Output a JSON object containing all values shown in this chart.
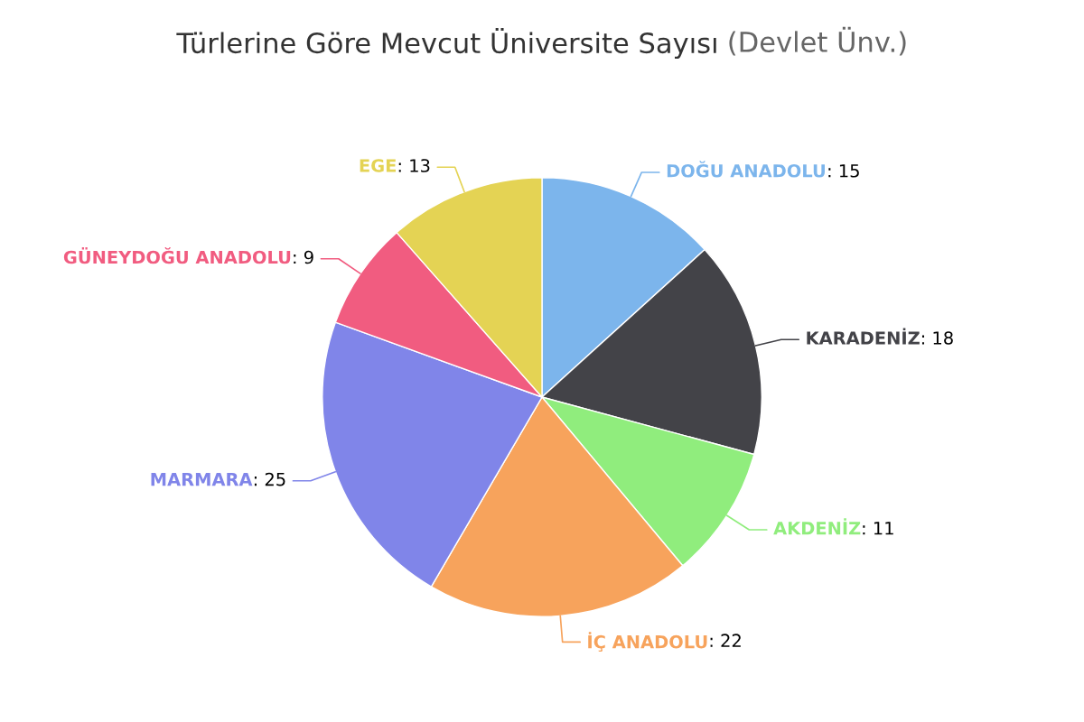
{
  "chart_data": {
    "type": "pie",
    "title": "Türlerine Göre Mevcut Üniversite Sayısı",
    "subtitle": "(Devlet Ünv.)",
    "categories": [
      "DOĞU ANADOLU",
      "KARADENİZ",
      "AKDENİZ",
      "İÇ ANADOLU",
      "MARMARA",
      "GÜNEYDOĞU ANADOLU",
      "EGE"
    ],
    "values": [
      15,
      18,
      11,
      22,
      25,
      9,
      13
    ],
    "colors": [
      "#7cb5ec",
      "#434348",
      "#90ed7d",
      "#f7a35c",
      "#8085e9",
      "#f15c80",
      "#e4d354"
    ],
    "value_labels": [
      ": 15",
      ": 18",
      ": 11",
      ": 22",
      ": 25",
      ": 9",
      ": 13"
    ]
  }
}
